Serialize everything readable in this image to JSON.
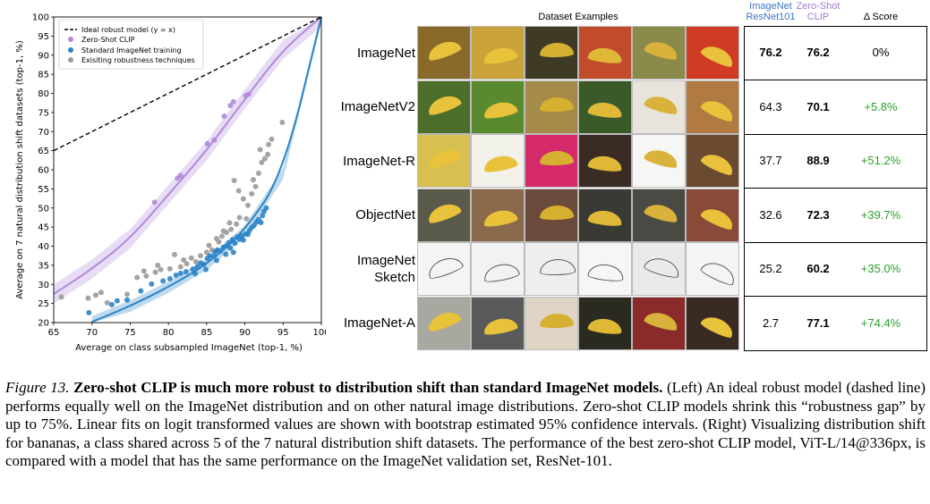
{
  "chart_data": {
    "type": "scatter",
    "xlabel": "Average on class subsampled ImageNet (top-1, %)",
    "ylabel": "Average on 7 natural distribution shift datasets (top-1, %)",
    "xlim": [
      65,
      100
    ],
    "ylim": [
      20,
      100
    ],
    "x_ticks": [
      "65",
      "70",
      "75",
      "80",
      "85",
      "90",
      "95",
      "100"
    ],
    "y_ticks": [
      "20",
      "25",
      "30",
      "35",
      "40",
      "45",
      "50",
      "55",
      "60",
      "65",
      "70",
      "75",
      "80",
      "85",
      "90",
      "95",
      "100"
    ],
    "legend": [
      "Ideal robust model (y = x)",
      "Zero-Shot CLIP",
      "Standard ImageNet training",
      "Exisiting robustness techniques"
    ],
    "legend_position": "upper-left",
    "colors": {
      "ideal": "#000000",
      "clip": "#b18ad9",
      "standard": "#2b83c6",
      "robust": "#9a9a9a"
    },
    "series": [
      {
        "name": "Zero-Shot CLIP",
        "points": [
          [
            78.2,
            51.5
          ],
          [
            81.2,
            57.8
          ],
          [
            81.6,
            58.5
          ],
          [
            85.1,
            66.8
          ],
          [
            86.0,
            67.8
          ],
          [
            87.3,
            74.0
          ],
          [
            88.1,
            76.8
          ],
          [
            88.5,
            77.8
          ],
          [
            90.1,
            79.4
          ],
          [
            90.5,
            79.8
          ]
        ]
      },
      {
        "name": "Standard ImageNet training",
        "points": [
          [
            69.6,
            22.6
          ],
          [
            72.6,
            24.7
          ],
          [
            73.3,
            25.7
          ],
          [
            74.6,
            25.9
          ],
          [
            76.4,
            28.3
          ],
          [
            77.8,
            30.1
          ],
          [
            79.3,
            30.9
          ],
          [
            80.2,
            31.5
          ],
          [
            81.0,
            32.4
          ],
          [
            81.6,
            32.9
          ],
          [
            82.3,
            33.3
          ],
          [
            83.2,
            34.0
          ],
          [
            83.8,
            34.6
          ],
          [
            84.2,
            35.6
          ],
          [
            84.6,
            35.2
          ],
          [
            85.1,
            36.8
          ],
          [
            85.4,
            37.5
          ],
          [
            85.9,
            37.4
          ],
          [
            86.1,
            38.5
          ],
          [
            86.4,
            39.0
          ],
          [
            86.8,
            38.7
          ],
          [
            87.2,
            39.7
          ],
          [
            87.6,
            40.1
          ],
          [
            87.9,
            40.9
          ],
          [
            88.1,
            39.5
          ],
          [
            88.4,
            41.7
          ],
          [
            88.7,
            40.8
          ],
          [
            89.0,
            42.4
          ],
          [
            89.3,
            41.8
          ],
          [
            89.6,
            42.7
          ],
          [
            89.8,
            41.6
          ],
          [
            90.1,
            43.2
          ],
          [
            90.4,
            43.1
          ],
          [
            90.6,
            44.1
          ],
          [
            90.9,
            44.9
          ],
          [
            91.2,
            45.4
          ],
          [
            91.5,
            46.3
          ],
          [
            91.8,
            47.0
          ],
          [
            92.1,
            46.2
          ],
          [
            92.3,
            48.0
          ],
          [
            92.5,
            49.1
          ],
          [
            92.8,
            50.0
          ],
          [
            88.5,
            38.4
          ],
          [
            87.5,
            37.9
          ],
          [
            86.3,
            36.3
          ],
          [
            84.9,
            33.9
          ],
          [
            83.5,
            32.8
          ]
        ]
      },
      {
        "name": "Exisiting robustness techniques",
        "points": [
          [
            66.0,
            26.7
          ],
          [
            69.5,
            26.4
          ],
          [
            70.5,
            27.2
          ],
          [
            71.2,
            27.9
          ],
          [
            74.6,
            27.4
          ],
          [
            75.9,
            31.8
          ],
          [
            77.1,
            32.2
          ],
          [
            78.3,
            33.2
          ],
          [
            79.0,
            33.9
          ],
          [
            80.2,
            34.1
          ],
          [
            81.6,
            34.6
          ],
          [
            82.4,
            35.4
          ],
          [
            83.6,
            35.9
          ],
          [
            84.2,
            37.5
          ],
          [
            85.0,
            38.4
          ],
          [
            85.7,
            39.0
          ],
          [
            86.3,
            42.0
          ],
          [
            87.0,
            42.6
          ],
          [
            87.6,
            43.6
          ],
          [
            88.2,
            44.4
          ],
          [
            88.9,
            45.8
          ],
          [
            89.3,
            47.5
          ],
          [
            89.8,
            52.4
          ],
          [
            90.4,
            50.7
          ],
          [
            90.9,
            53.7
          ],
          [
            91.4,
            55.6
          ],
          [
            91.8,
            59.1
          ],
          [
            92.2,
            61.9
          ],
          [
            92.6,
            62.9
          ],
          [
            93.1,
            66.6
          ],
          [
            93.5,
            68.0
          ],
          [
            94.9,
            72.4
          ],
          [
            80.8,
            37.8
          ],
          [
            82.0,
            36.4
          ],
          [
            78.6,
            35.0
          ],
          [
            76.8,
            33.5
          ],
          [
            72.0,
            25.2
          ],
          [
            88.6,
            57.2
          ],
          [
            89.2,
            54.5
          ],
          [
            91.1,
            57.4
          ],
          [
            86.6,
            41.1
          ],
          [
            85.3,
            40.2
          ],
          [
            83.0,
            36.9
          ],
          [
            92.0,
            65.3
          ],
          [
            93.0,
            64.0
          ],
          [
            90.2,
            47.2
          ],
          [
            88.0,
            46.1
          ],
          [
            87.2,
            44.0
          ]
        ]
      }
    ],
    "fit_curves": [
      {
        "name": "Zero-Shot CLIP",
        "x": [
          65,
          70,
          75,
          80,
          85,
          90,
          95,
          100
        ],
        "y": [
          27.5,
          34.0,
          42.0,
          53.5,
          65.0,
          78.5,
          91.5,
          100
        ]
      },
      {
        "name": "Standard ImageNet training",
        "x": [
          70,
          75,
          80,
          85,
          90,
          95,
          100
        ],
        "y": [
          20.2,
          24.3,
          29.3,
          35.2,
          44.0,
          59.0,
          100
        ]
      }
    ]
  },
  "panel": {
    "header_dataset_examples": "Dataset Examples",
    "header_resnet_line1": "ImageNet",
    "header_resnet_line2": "ResNet101",
    "header_clip_line1": "Zero-Shot",
    "header_clip_line2": "CLIP",
    "header_delta": "Δ Score",
    "resnet_color": "#3a78c8",
    "clip_color": "#a27ad0",
    "delta_positive_color": "#2ca02c",
    "rows": [
      {
        "label": "ImageNet",
        "resnet": "76.2",
        "clip": "76.2",
        "delta": "0%"
      },
      {
        "label": "ImageNetV2",
        "resnet": "64.3",
        "clip": "70.1",
        "delta": "+5.8%"
      },
      {
        "label": "ImageNet-R",
        "resnet": "37.7",
        "clip": "88.9",
        "delta": "+51.2%"
      },
      {
        "label": "ObjectNet",
        "resnet": "32.6",
        "clip": "72.3",
        "delta": "+39.7%"
      },
      {
        "label": "ImageNet\nSketch",
        "resnet": "25.2",
        "clip": "60.2",
        "delta": "+35.0%"
      },
      {
        "label": "ImageNet-A",
        "resnet": "2.7",
        "clip": "77.1",
        "delta": "+74.4%"
      }
    ]
  },
  "caption": {
    "figure_label": "Figure 13.",
    "title": "Zero-shot CLIP is much more robust to distribution shift than standard ImageNet models.",
    "body": "(Left) An ideal robust model (dashed line) performs equally well on the ImageNet distribution and on other natural image distributions. Zero-shot CLIP models shrink this “robustness gap” by up to 75%. Linear fits on logit transformed values are shown with bootstrap estimated 95% confidence intervals. (Right) Visualizing distribution shift for bananas, a class shared across 5 of the 7 natural distribution shift datasets. The performance of the best zero-shot CLIP model, ViT-L/14@336px, is compared with a model that has the same performance on the ImageNet validation set, ResNet-101."
  }
}
